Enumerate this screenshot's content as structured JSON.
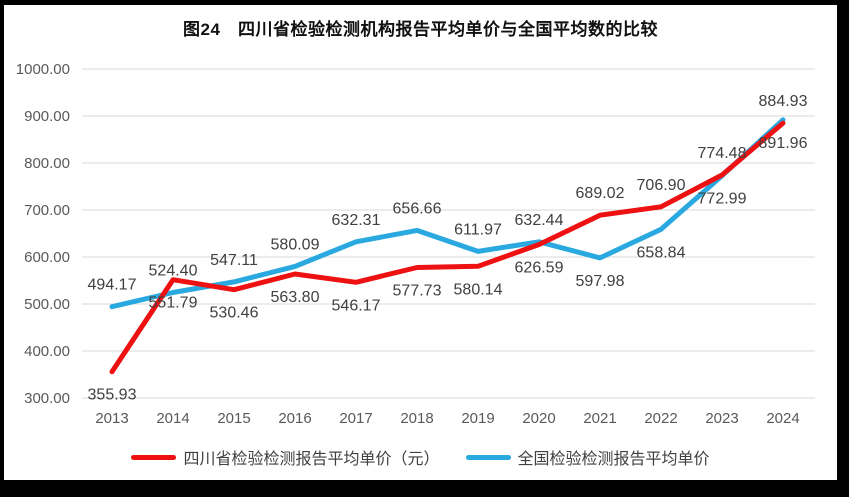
{
  "title": "图24　四川省检验检测机构报告平均单价与全国平均数的比较",
  "chart_data": {
    "type": "line",
    "title": "图24　四川省检验检测机构报告平均单价与全国平均数的比较",
    "categories": [
      "2013",
      "2014",
      "2015",
      "2016",
      "2017",
      "2018",
      "2019",
      "2020",
      "2021",
      "2022",
      "2023",
      "2024"
    ],
    "series": [
      {
        "id": "sichuan",
        "name": "四川省检验检测报告平均单价（元）",
        "color": "#ee1111",
        "values": [
          355.93,
          551.79,
          530.46,
          563.8,
          546.17,
          577.73,
          580.14,
          626.59,
          689.02,
          706.9,
          774.48,
          884.93
        ],
        "label_positions": [
          "below",
          "below",
          "below",
          "below",
          "below",
          "below",
          "below",
          "below",
          "above",
          "above",
          "above",
          "above"
        ]
      },
      {
        "id": "national",
        "name": "全国检验检测报告平均单价",
        "color": "#2aa9e0",
        "values": [
          494.17,
          524.4,
          547.11,
          580.09,
          632.31,
          656.66,
          611.97,
          632.44,
          597.98,
          658.84,
          772.99,
          891.96
        ],
        "label_positions": [
          "above",
          "above",
          "above",
          "above",
          "above",
          "above",
          "above",
          "above",
          "below",
          "below",
          "below",
          "below"
        ]
      }
    ],
    "ylim": [
      300,
      1000
    ],
    "ytick_step": 100,
    "ytick_labels": [
      "300.00",
      "400.00",
      "500.00",
      "600.00",
      "700.00",
      "800.00",
      "900.00",
      "1000.00"
    ],
    "grid": true,
    "legend_position": "bottom",
    "gridline_color": "#d9d9d9",
    "axis_text_color": "#595959",
    "data_label_color": "#404040"
  }
}
